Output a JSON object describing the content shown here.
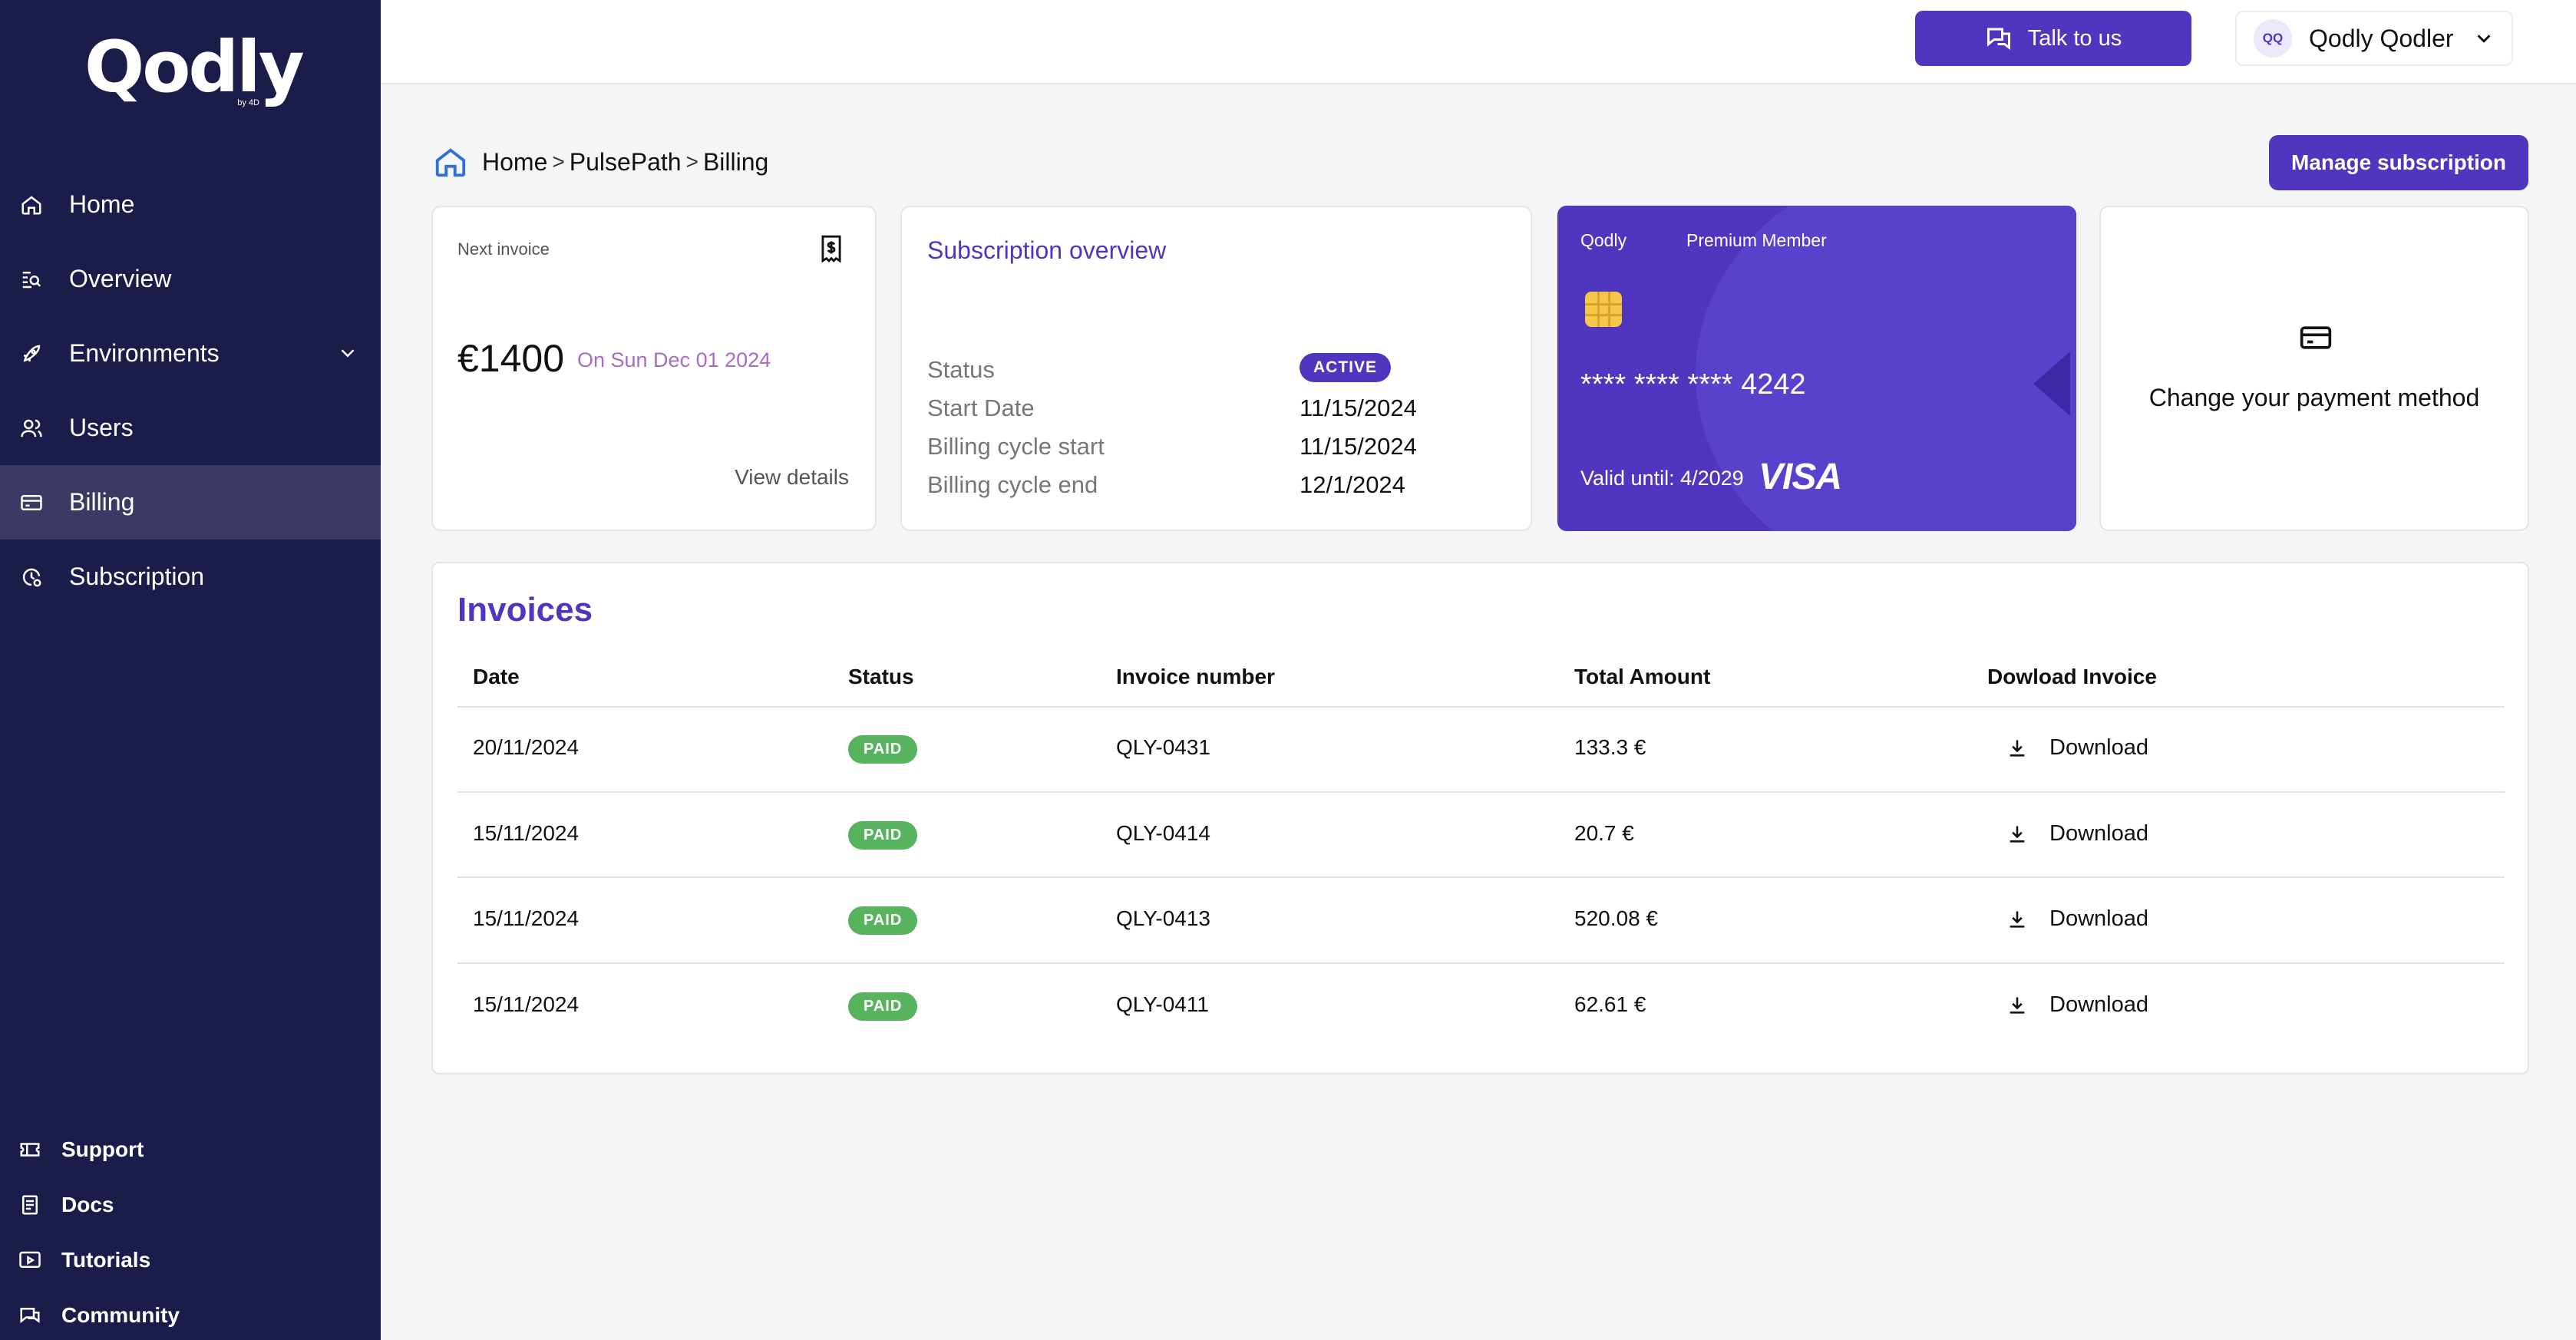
{
  "sidebar": {
    "logo_text": "Qodly",
    "logo_by": "by 4D",
    "items": [
      {
        "label": "Home"
      },
      {
        "label": "Overview"
      },
      {
        "label": "Environments"
      },
      {
        "label": "Users"
      },
      {
        "label": "Billing"
      },
      {
        "label": "Subscription"
      }
    ],
    "footer": [
      {
        "label": "Support"
      },
      {
        "label": "Docs"
      },
      {
        "label": "Tutorials"
      },
      {
        "label": "Community"
      }
    ]
  },
  "topbar": {
    "talk_label": "Talk to us",
    "avatar_initials": "QQ",
    "user_name": "Qodly Qodler"
  },
  "breadcrumb": {
    "home": "Home",
    "sep1": ">",
    "project": "PulsePath",
    "sep2": ">",
    "current": "Billing"
  },
  "manage_label": "Manage subscription",
  "next_invoice": {
    "title": "Next invoice",
    "amount": "€1400",
    "date": "On Sun Dec 01 2024",
    "view_label": "View details"
  },
  "subscription": {
    "title": "Subscription overview",
    "status_label": "Status",
    "status_value": "ACTIVE",
    "start_label": "Start Date",
    "start_value": "11/15/2024",
    "cycle_start_label": "Billing cycle start",
    "cycle_start_value": "11/15/2024",
    "cycle_end_label": "Billing cycle end",
    "cycle_end_value": "12/1/2024"
  },
  "card": {
    "brand": "Qodly",
    "tier": "Premium Member",
    "number": "**** **** **** 4242",
    "valid": "Valid until: 4/2029",
    "network": "VISA"
  },
  "payment_method": {
    "label": "Change your payment method"
  },
  "invoices": {
    "title": "Invoices",
    "columns": [
      "Date",
      "Status",
      "Invoice number",
      "Total Amount",
      "Dowload Invoice"
    ],
    "download_label": "Download",
    "rows": [
      {
        "date": "20/11/2024",
        "status": "PAID",
        "number": "QLY-0431",
        "amount": "133.3 €"
      },
      {
        "date": "15/11/2024",
        "status": "PAID",
        "number": "QLY-0414",
        "amount": "20.7 €"
      },
      {
        "date": "15/11/2024",
        "status": "PAID",
        "number": "QLY-0413",
        "amount": "520.08 €"
      },
      {
        "date": "15/11/2024",
        "status": "PAID",
        "number": "QLY-0411",
        "amount": "62.61 €"
      }
    ]
  },
  "colors": {
    "sidebar_bg": "#1c1c4a",
    "accent": "#5036bf",
    "paid": "#58b35f",
    "date_accent": "#a66cc8"
  }
}
